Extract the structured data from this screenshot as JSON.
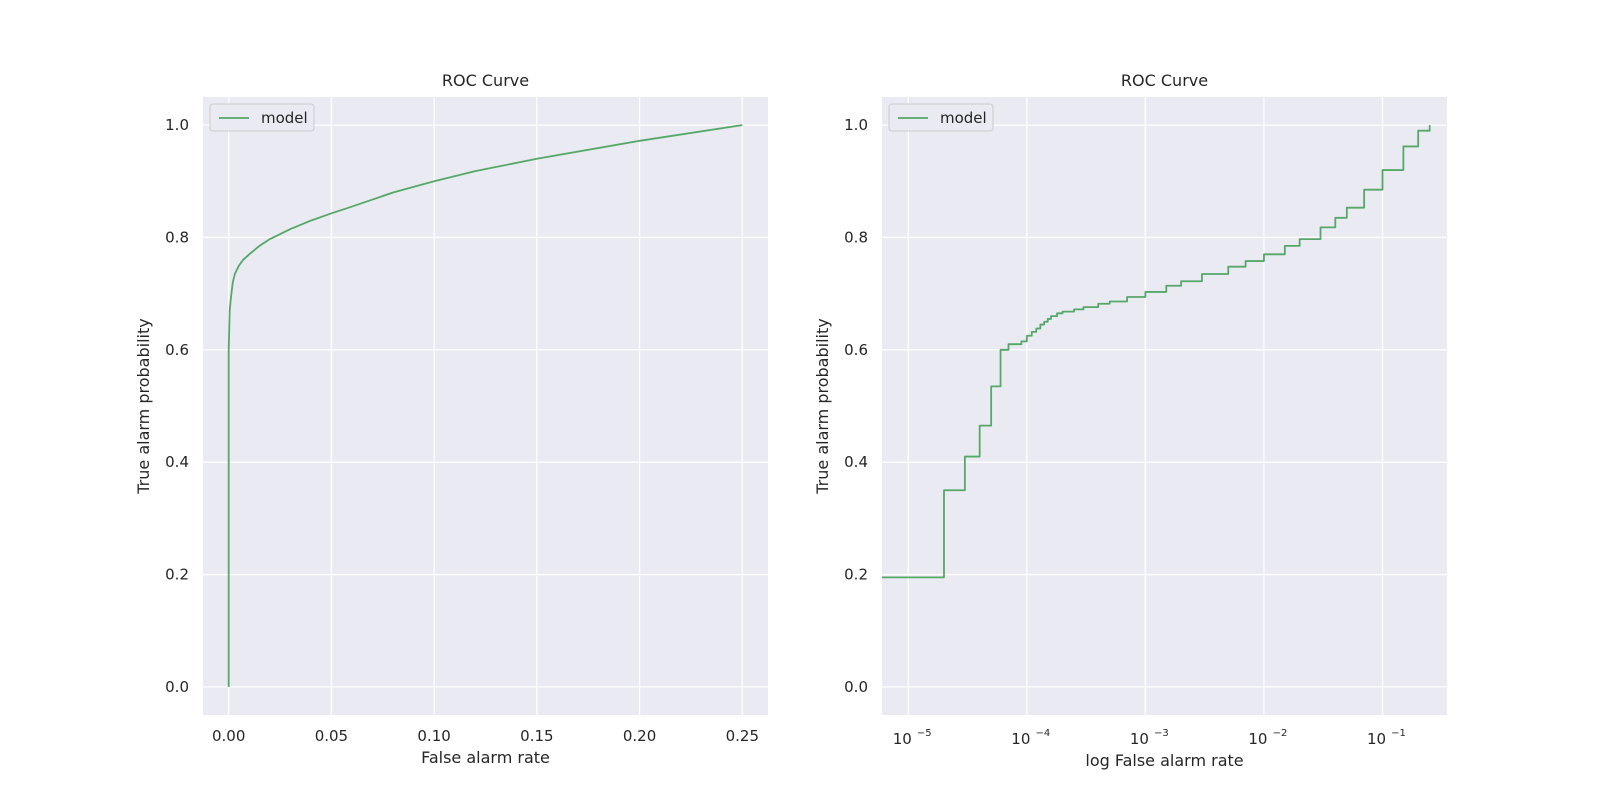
{
  "chart_data": [
    {
      "type": "line",
      "title": "ROC Curve",
      "xlabel": "False alarm rate",
      "ylabel": "True alarm probability",
      "xscale": "linear",
      "xlim": [
        -0.0125,
        0.2625
      ],
      "ylim": [
        -0.05,
        1.05
      ],
      "xticks": [
        0.0,
        0.05,
        0.1,
        0.15,
        0.2,
        0.25
      ],
      "xtick_labels": [
        "0.00",
        "0.05",
        "0.10",
        "0.15",
        "0.20",
        "0.25"
      ],
      "yticks": [
        0.0,
        0.2,
        0.4,
        0.6,
        0.8,
        1.0
      ],
      "ytick_labels": [
        "0.0",
        "0.2",
        "0.4",
        "0.6",
        "0.8",
        "1.0"
      ],
      "grid": true,
      "legend": {
        "position": "upper-left",
        "entries": [
          "model"
        ]
      },
      "series": [
        {
          "name": "model",
          "color": "#55a868",
          "x": [
            0,
            0.0,
            0.0,
            0.0005,
            0.001,
            0.002,
            0.003,
            0.005,
            0.007,
            0.01,
            0.015,
            0.02,
            0.03,
            0.04,
            0.05,
            0.06,
            0.08,
            0.1,
            0.12,
            0.15,
            0.2,
            0.25
          ],
          "y": [
            0,
            0.2,
            0.6,
            0.67,
            0.69,
            0.72,
            0.735,
            0.75,
            0.76,
            0.77,
            0.785,
            0.797,
            0.815,
            0.83,
            0.843,
            0.855,
            0.88,
            0.9,
            0.918,
            0.94,
            0.972,
            1.0
          ]
        }
      ]
    },
    {
      "type": "line",
      "title": "ROC Curve",
      "xlabel": "log False alarm rate",
      "ylabel": "True alarm probability",
      "xscale": "log",
      "xlim": [
        6e-06,
        0.35
      ],
      "ylim": [
        -0.05,
        1.05
      ],
      "xticks": [
        1e-05,
        0.0001,
        0.001,
        0.01,
        0.1
      ],
      "xtick_labels": [
        {
          "base": "10",
          "exp": "−5"
        },
        {
          "base": "10",
          "exp": "−4"
        },
        {
          "base": "10",
          "exp": "−3"
        },
        {
          "base": "10",
          "exp": "−2"
        },
        {
          "base": "10",
          "exp": "−1"
        }
      ],
      "yticks": [
        0.0,
        0.2,
        0.4,
        0.6,
        0.8,
        1.0
      ],
      "ytick_labels": [
        "0.0",
        "0.2",
        "0.4",
        "0.6",
        "0.8",
        "1.0"
      ],
      "grid": true,
      "legend": {
        "position": "upper-left",
        "entries": [
          "model"
        ]
      },
      "series": [
        {
          "name": "model",
          "color": "#55a868",
          "step": true,
          "x": [
            6e-06,
            2e-05,
            3e-05,
            4e-05,
            5e-05,
            6e-05,
            7e-05,
            9e-05,
            0.0001,
            0.00011,
            0.00012,
            0.00013,
            0.00014,
            0.00015,
            0.00016,
            0.00018,
            0.0002,
            0.00025,
            0.0003,
            0.0004,
            0.0005,
            0.0007,
            0.001,
            0.0015,
            0.002,
            0.003,
            0.005,
            0.007,
            0.01,
            0.015,
            0.02,
            0.03,
            0.04,
            0.05,
            0.07,
            0.1,
            0.15,
            0.2,
            0.25
          ],
          "y": [
            0.195,
            0.35,
            0.41,
            0.465,
            0.535,
            0.6,
            0.61,
            0.615,
            0.625,
            0.632,
            0.638,
            0.645,
            0.65,
            0.655,
            0.66,
            0.665,
            0.668,
            0.672,
            0.676,
            0.682,
            0.686,
            0.694,
            0.703,
            0.714,
            0.722,
            0.735,
            0.748,
            0.758,
            0.77,
            0.785,
            0.797,
            0.818,
            0.835,
            0.853,
            0.885,
            0.92,
            0.962,
            0.99,
            1.0
          ]
        }
      ]
    }
  ]
}
